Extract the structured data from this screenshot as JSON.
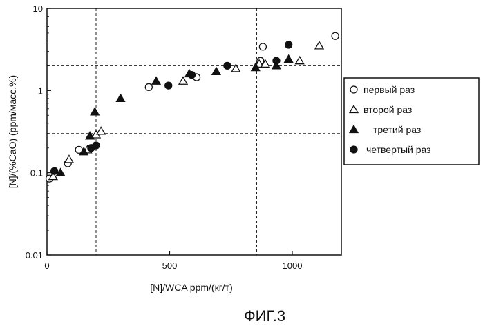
{
  "chart_data": {
    "type": "scatter",
    "title": "",
    "xlabel": "[N]/WCA    ppm/(кг/т)",
    "ylabel": "[N]/(%CaO)   (ppm/масс.%)",
    "xlim": [
      0,
      1200
    ],
    "ylim": [
      0.01,
      10
    ],
    "y_scale": "log",
    "x_ticks": [
      "0",
      "500",
      "1000"
    ],
    "x_tick_values": [
      0,
      500,
      1000
    ],
    "y_ticks": [
      "10",
      "1",
      "0.1",
      "0.01"
    ],
    "y_tick_values": [
      10,
      1,
      0.1,
      0.01
    ],
    "reference_lines": {
      "vertical": [
        200,
        855
      ],
      "horizontal": [
        2.0,
        0.3
      ]
    },
    "legend_position": "right",
    "figure_caption": "ФИГ.3",
    "series": [
      {
        "name": "первый раз",
        "marker": "open-circle",
        "points": [
          [
            10,
            0.085
          ],
          [
            85,
            0.13
          ],
          [
            130,
            0.19
          ],
          [
            415,
            1.1
          ],
          [
            610,
            1.45
          ],
          [
            870,
            2.3
          ],
          [
            880,
            3.4
          ],
          [
            1175,
            4.6
          ]
        ]
      },
      {
        "name": "второй раз",
        "marker": "open-triangle",
        "points": [
          [
            25,
            0.09
          ],
          [
            90,
            0.145
          ],
          [
            165,
            0.19
          ],
          [
            200,
            0.29
          ],
          [
            220,
            0.32
          ],
          [
            555,
            1.3
          ],
          [
            770,
            1.85
          ],
          [
            865,
            2.1
          ],
          [
            890,
            2.1
          ],
          [
            1030,
            2.3
          ],
          [
            1110,
            3.5
          ]
        ]
      },
      {
        "name": "третий раз",
        "marker": "filled-triangle",
        "points": [
          [
            55,
            0.1
          ],
          [
            150,
            0.18
          ],
          [
            175,
            0.28
          ],
          [
            195,
            0.55
          ],
          [
            300,
            0.8
          ],
          [
            445,
            1.3
          ],
          [
            580,
            1.6
          ],
          [
            690,
            1.7
          ],
          [
            850,
            1.9
          ],
          [
            935,
            2.0
          ],
          [
            985,
            2.4
          ]
        ]
      },
      {
        "name": "четвертый раз",
        "marker": "filled-circle",
        "points": [
          [
            30,
            0.105
          ],
          [
            180,
            0.2
          ],
          [
            200,
            0.215
          ],
          [
            495,
            1.15
          ],
          [
            590,
            1.55
          ],
          [
            735,
            2.0
          ],
          [
            935,
            2.3
          ],
          [
            985,
            3.6
          ]
        ]
      }
    ]
  }
}
